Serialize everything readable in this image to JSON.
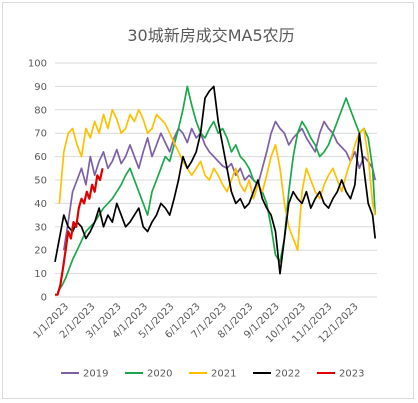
{
  "chart_data": {
    "type": "line",
    "title": "30城新房成交MA5农历",
    "ylim": [
      0,
      100
    ],
    "y_ticks": [
      0,
      10,
      20,
      30,
      40,
      50,
      60,
      70,
      80,
      90,
      100
    ],
    "x_ticks": [
      "1/1/2023",
      "2/1/2023",
      "3/1/2023",
      "4/1/2023",
      "5/1/2023",
      "6/1/2023",
      "7/1/2023",
      "8/1/2023",
      "9/1/2023",
      "10/1/2023",
      "11/1/2023",
      "12/1/2023"
    ],
    "x_domain_days": [
      0,
      365
    ],
    "grid": "horizontal",
    "legend_position": "bottom",
    "series": [
      {
        "name": "2019",
        "color": "#7e5fa6",
        "x": [
          10,
          15,
          20,
          25,
          30,
          35,
          40,
          45,
          50,
          55,
          60,
          65,
          70,
          75,
          80,
          85,
          90,
          95,
          100,
          105,
          110,
          115,
          120,
          125,
          130,
          135,
          140,
          145,
          150,
          155,
          160,
          165,
          170,
          175,
          180,
          185,
          190,
          195,
          200,
          205,
          210,
          215,
          220,
          225,
          230,
          235,
          240,
          245,
          250,
          255,
          260,
          265,
          270,
          275,
          280,
          285,
          290,
          295,
          300,
          305,
          310,
          315,
          320,
          325,
          330,
          335,
          340,
          345,
          350,
          355,
          360,
          363
        ],
        "y": [
          20,
          32,
          45,
          50,
          55,
          48,
          60,
          52,
          58,
          62,
          55,
          58,
          63,
          57,
          60,
          65,
          60,
          55,
          62,
          68,
          60,
          65,
          70,
          66,
          62,
          68,
          72,
          70,
          66,
          72,
          68,
          70,
          65,
          62,
          60,
          58,
          56,
          55,
          57,
          52,
          55,
          50,
          52,
          50,
          48,
          55,
          62,
          70,
          75,
          72,
          70,
          65,
          68,
          70,
          72,
          68,
          65,
          62,
          70,
          75,
          72,
          70,
          66,
          64,
          62,
          58,
          62,
          55,
          60,
          58,
          55,
          50
        ]
      },
      {
        "name": "2020",
        "color": "#1aa84a",
        "x": [
          3,
          8,
          12,
          16,
          20,
          25,
          30,
          35,
          40,
          45,
          50,
          55,
          60,
          65,
          70,
          75,
          80,
          85,
          90,
          95,
          100,
          105,
          110,
          115,
          120,
          125,
          130,
          135,
          140,
          145,
          150,
          155,
          160,
          165,
          170,
          175,
          180,
          185,
          190,
          195,
          200,
          205,
          210,
          215,
          220,
          225,
          230,
          235,
          240,
          245,
          250,
          255,
          260,
          265,
          270,
          275,
          280,
          285,
          290,
          295,
          300,
          305,
          310,
          315,
          320,
          325,
          330,
          335,
          340,
          345,
          350,
          355,
          360,
          363
        ],
        "y": [
          2,
          5,
          8,
          12,
          16,
          20,
          24,
          28,
          30,
          32,
          35,
          38,
          40,
          42,
          45,
          48,
          52,
          55,
          50,
          45,
          40,
          35,
          45,
          50,
          55,
          60,
          58,
          65,
          72,
          80,
          90,
          82,
          75,
          70,
          68,
          72,
          75,
          70,
          72,
          68,
          62,
          65,
          60,
          58,
          55,
          50,
          48,
          45,
          40,
          30,
          18,
          15,
          25,
          45,
          60,
          70,
          75,
          72,
          68,
          65,
          60,
          62,
          65,
          70,
          75,
          80,
          85,
          80,
          75,
          70,
          72,
          68,
          55,
          35
        ]
      },
      {
        "name": "2021",
        "color": "#ffc000",
        "x": [
          5,
          10,
          15,
          20,
          25,
          30,
          35,
          40,
          45,
          50,
          55,
          60,
          65,
          70,
          75,
          80,
          85,
          90,
          95,
          100,
          105,
          110,
          115,
          120,
          125,
          130,
          135,
          140,
          145,
          150,
          155,
          160,
          165,
          170,
          175,
          180,
          185,
          190,
          195,
          200,
          205,
          210,
          215,
          220,
          225,
          230,
          235,
          240,
          245,
          250,
          255,
          260,
          265,
          270,
          275,
          280,
          285,
          290,
          295,
          300,
          305,
          310,
          315,
          320,
          325,
          330,
          335,
          340,
          345,
          350,
          355,
          360,
          363
        ],
        "y": [
          40,
          62,
          70,
          72,
          65,
          60,
          72,
          68,
          75,
          70,
          78,
          72,
          80,
          76,
          70,
          72,
          78,
          75,
          80,
          76,
          70,
          72,
          78,
          76,
          74,
          70,
          66,
          62,
          58,
          55,
          52,
          55,
          58,
          52,
          50,
          55,
          52,
          48,
          45,
          50,
          55,
          48,
          45,
          50,
          42,
          48,
          45,
          52,
          60,
          65,
          55,
          40,
          30,
          25,
          20,
          45,
          55,
          50,
          45,
          42,
          48,
          52,
          55,
          50,
          45,
          52,
          58,
          65,
          70,
          72,
          60,
          40,
          35
        ]
      },
      {
        "name": "2022",
        "color": "#000000",
        "x": [
          0,
          5,
          10,
          15,
          20,
          25,
          30,
          35,
          40,
          45,
          50,
          55,
          60,
          65,
          70,
          75,
          80,
          85,
          90,
          95,
          100,
          105,
          110,
          115,
          120,
          125,
          130,
          135,
          140,
          145,
          150,
          155,
          160,
          165,
          170,
          175,
          180,
          185,
          190,
          195,
          200,
          205,
          210,
          215,
          220,
          225,
          230,
          235,
          240,
          245,
          250,
          255,
          260,
          265,
          270,
          275,
          280,
          285,
          290,
          295,
          300,
          305,
          310,
          315,
          320,
          325,
          330,
          335,
          340,
          345,
          350,
          355,
          360,
          363
        ],
        "y": [
          15,
          25,
          35,
          30,
          28,
          32,
          30,
          25,
          28,
          32,
          38,
          30,
          35,
          32,
          40,
          35,
          30,
          32,
          35,
          38,
          30,
          28,
          32,
          35,
          40,
          38,
          35,
          42,
          50,
          60,
          55,
          58,
          62,
          70,
          85,
          88,
          90,
          75,
          65,
          55,
          45,
          40,
          42,
          38,
          40,
          45,
          50,
          42,
          38,
          35,
          28,
          10,
          25,
          40,
          45,
          42,
          40,
          45,
          38,
          42,
          45,
          40,
          38,
          42,
          45,
          50,
          45,
          42,
          48,
          70,
          55,
          40,
          35,
          25
        ]
      },
      {
        "name": "2023",
        "color": "#e00000",
        "x": [
          0,
          3,
          6,
          9,
          12,
          15,
          18,
          21,
          24,
          27,
          30,
          33,
          36,
          39,
          42,
          45,
          48,
          51,
          54
        ],
        "y": [
          1,
          1,
          5,
          12,
          20,
          28,
          25,
          32,
          30,
          38,
          42,
          40,
          45,
          42,
          48,
          45,
          52,
          50,
          55
        ]
      }
    ]
  }
}
